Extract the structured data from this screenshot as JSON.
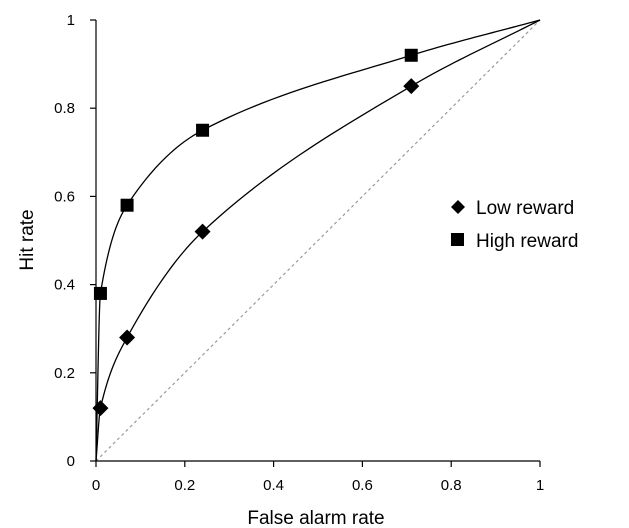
{
  "chart_data": {
    "type": "scatter",
    "xlabel": "False alarm rate",
    "ylabel": "Hit rate",
    "xlim": [
      0,
      1
    ],
    "ylim": [
      0,
      1
    ],
    "xticks": [
      "0",
      "0.2",
      "0.4",
      "0.6",
      "0.8",
      "1"
    ],
    "yticks": [
      "0",
      "0.2",
      "0.4",
      "0.6",
      "0.8",
      "1"
    ],
    "grid": false,
    "legend_position": "right",
    "reference_line": "dashed diagonal (chance)",
    "series": [
      {
        "name": "Low reward",
        "marker": "diamond",
        "color": "#000000",
        "x": [
          0.01,
          0.07,
          0.24,
          0.71
        ],
        "y": [
          0.12,
          0.28,
          0.52,
          0.85
        ],
        "fit": "curve"
      },
      {
        "name": "High reward",
        "marker": "square",
        "color": "#000000",
        "x": [
          0.01,
          0.07,
          0.24,
          0.71
        ],
        "y": [
          0.38,
          0.58,
          0.75,
          0.92
        ],
        "fit": "curve"
      }
    ]
  }
}
